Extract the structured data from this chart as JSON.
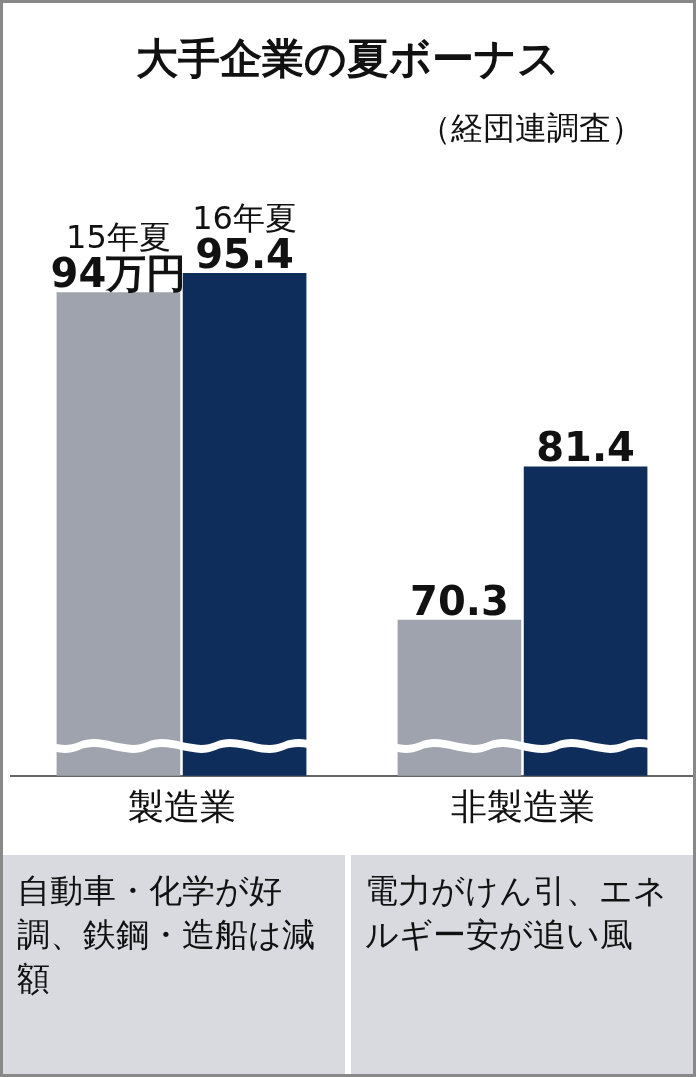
{
  "chart_data": {
    "type": "bar",
    "title": "大手企業の夏ボーナス",
    "subtitle": "（経団連調査）",
    "categories": [
      "製造業",
      "非製造業"
    ],
    "series": [
      {
        "name": "15年夏",
        "color": "#9ea3ad",
        "values": [
          94,
          70.3
        ],
        "value_labels": [
          "94万円",
          "70.3"
        ]
      },
      {
        "name": "16年夏",
        "color": "#0f2d5a",
        "values": [
          95.4,
          81.4
        ],
        "value_labels": [
          "95.4",
          "81.4"
        ]
      }
    ],
    "tick_labels": "x",
    "grid": false,
    "legend": false,
    "annotations": [
      "自動車・化学が好調、鉄鋼・造船は減額",
      "電力がけん引、エネルギー安が追い風"
    ]
  }
}
